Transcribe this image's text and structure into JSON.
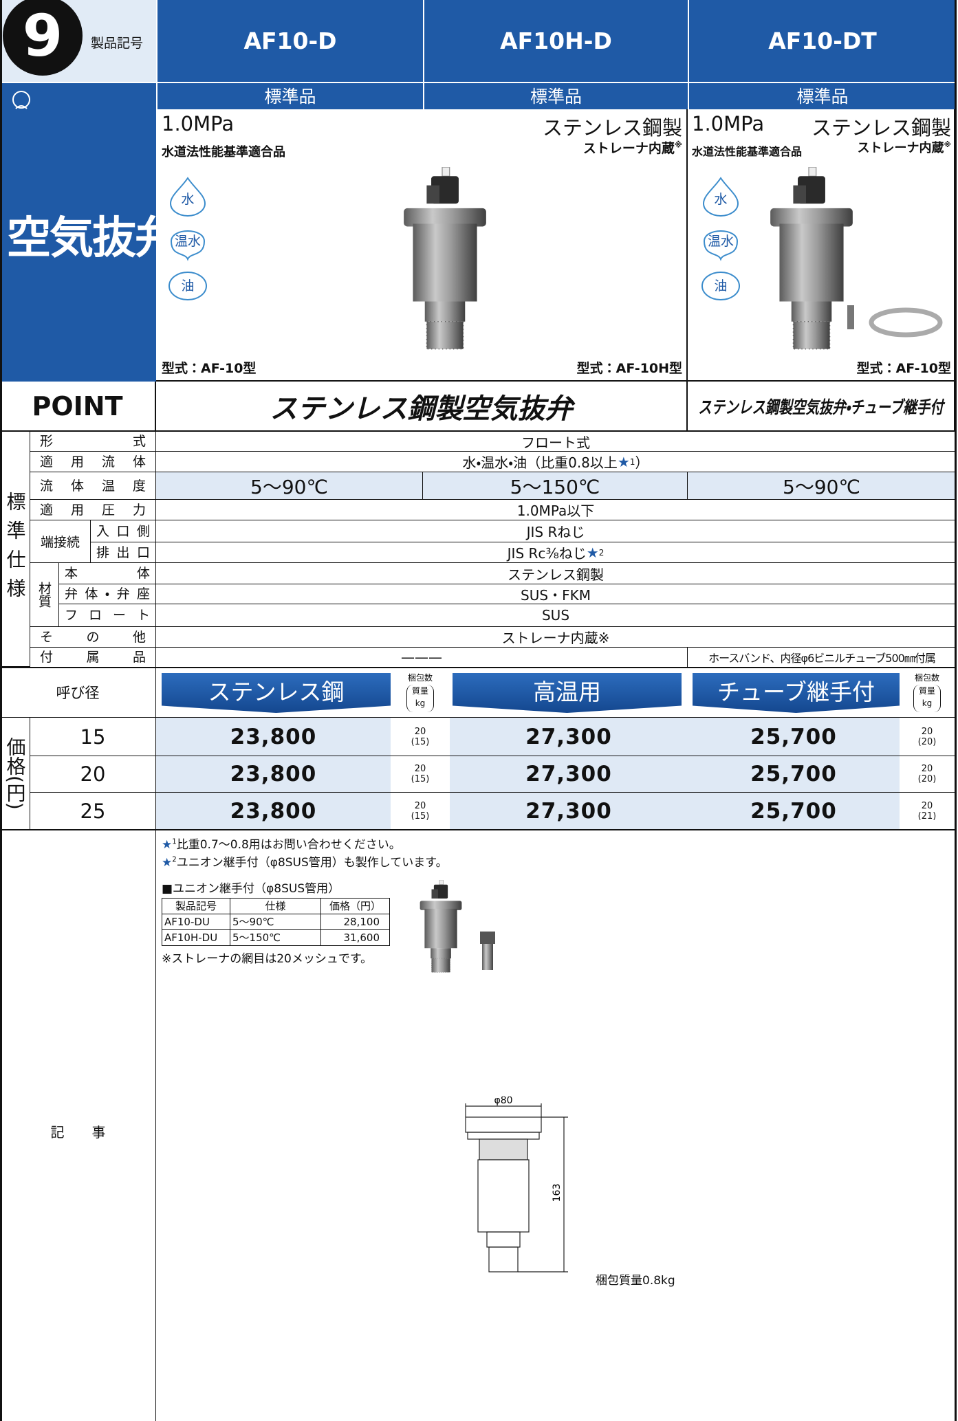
{
  "header": {
    "number": "9",
    "label": "製品記号",
    "models": [
      "AF10-D",
      "AF10H-D",
      "AF10-DT"
    ],
    "grades": [
      "標準品",
      "標準品",
      "標準品"
    ]
  },
  "category": "空気抜弁",
  "products": [
    {
      "pressure": "1.0MPa",
      "material": "ステンレス鋼製",
      "certification": "水道法性能基準適合品",
      "strainer": "ストレーナ内蔵",
      "note_mark": "※",
      "fluids": [
        "水",
        "温水",
        "油"
      ],
      "model_types": [
        "型式：AF-10型",
        "型式：AF-10H型"
      ]
    },
    {
      "pressure": "1.0MPa",
      "material": "ステンレス鋼製",
      "certification": "水道法性能基準適合品",
      "strainer": "ストレーナ内蔵",
      "note_mark": "※",
      "fluids": [
        "水",
        "温水",
        "油"
      ],
      "model_types": [
        "型式：AF-10型"
      ]
    }
  ],
  "point": {
    "label": "POINT",
    "texts": [
      "ステンレス鋼製空気抜弁",
      "ステンレス鋼製空気抜弁・チューブ継手付"
    ]
  },
  "spec": {
    "group": "標準仕様",
    "rows": [
      {
        "label": "形式",
        "value": "フロート式"
      },
      {
        "label": "適用流体",
        "value": "水・温水・油（比重0.8以上",
        "star": "★",
        "ref": "1",
        "close": "）"
      },
      {
        "label": "流体温度",
        "values": [
          "5〜90℃",
          "5〜150℃",
          "5〜90℃"
        ]
      },
      {
        "label": "適用圧力",
        "value": "1.0MPa以下"
      },
      {
        "label": "端接続",
        "items": [
          {
            "label": "入口側",
            "value": "JIS Rねじ"
          },
          {
            "label": "排出口",
            "value": "JIS Rc⅜ねじ",
            "star": "★",
            "ref": "2"
          }
        ]
      },
      {
        "label": "材質",
        "items": [
          {
            "label": "本体",
            "value": "ステンレス鋼製"
          },
          {
            "label": "弁体・弁座",
            "value": "SUS・FKM"
          },
          {
            "label": "フロート",
            "value": "SUS"
          }
        ]
      },
      {
        "label": "その他",
        "value": "ストレーナ内蔵※"
      },
      {
        "label": "付属品",
        "values": [
          "———",
          "ホースバンド、内径φ6ビニルチューブ500㎜付属"
        ]
      }
    ]
  },
  "price": {
    "size_label": "呼び径",
    "side_label": "価格(円)",
    "columns": [
      "ステンレス鋼",
      "高温用",
      "チューブ継手付"
    ],
    "pack_label": [
      "梱包数",
      "質量",
      "kg"
    ],
    "rows": [
      {
        "size": "15",
        "prices": [
          "23,800",
          "27,300",
          "25,700"
        ],
        "packs": [
          [
            "20",
            "(15)"
          ],
          [
            "20",
            "(20)"
          ]
        ]
      },
      {
        "size": "20",
        "prices": [
          "23,800",
          "27,300",
          "25,700"
        ],
        "packs": [
          [
            "20",
            "(15)"
          ],
          [
            "20",
            "(20)"
          ]
        ]
      },
      {
        "size": "25",
        "prices": [
          "23,800",
          "27,300",
          "25,700"
        ],
        "packs": [
          [
            "20",
            "(15)"
          ],
          [
            "20",
            "(21)"
          ]
        ]
      }
    ]
  },
  "notes": {
    "label": "記事",
    "items": [
      {
        "star": "★",
        "ref": "1",
        "text": "比重0.7〜0.8用はお問い合わせください。"
      },
      {
        "star": "★",
        "ref": "2",
        "text": "ユニオン継手付（φ8SUS管用）も製作しています。"
      }
    ],
    "union": {
      "title": "■ユニオン継手付（φ8SUS管用）",
      "header": [
        "製品記号",
        "仕様",
        "価格（円）"
      ],
      "rows": [
        [
          "AF10-DU",
          "5〜90℃",
          "28,100"
        ],
        [
          "AF10H-DU",
          "5〜150℃",
          "31,600"
        ]
      ]
    },
    "mesh_note": "※ストレーナの網目は20メッシュです。",
    "drawing": {
      "width": "φ80",
      "height": "163",
      "weight": "梱包質量0.8kg"
    }
  }
}
